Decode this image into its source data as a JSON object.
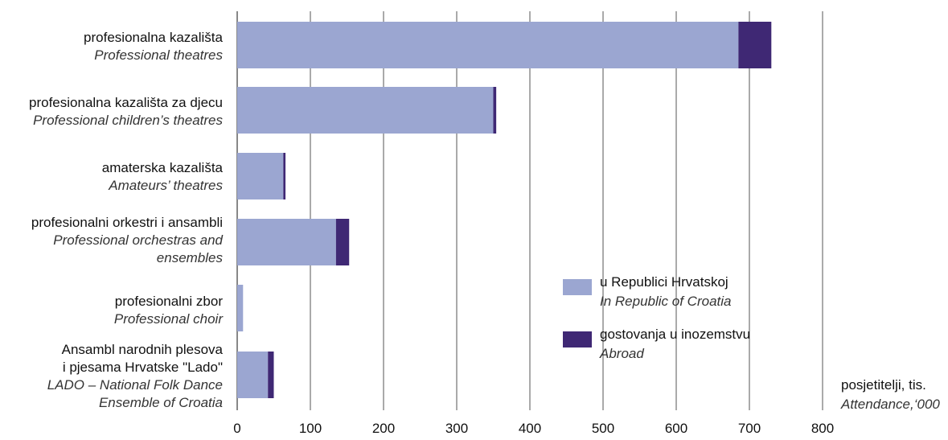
{
  "colors": {
    "domestic": "#9ba6d1",
    "abroad": "#3f2874",
    "grid": "#555555"
  },
  "chart_data": {
    "type": "bar",
    "orientation": "horizontal",
    "stacked": true,
    "categories": [
      {
        "hr": "profesionalna kazališta",
        "en": "Professional theatres"
      },
      {
        "hr": "profesionalna kazališta za djecu",
        "en": "Professional children’s theatres"
      },
      {
        "hr": "amaterska kazališta",
        "en": "Amateurs’ theatres"
      },
      {
        "hr": "profesionalni orkestri i ansambli",
        "en": "Professional orchestras and\nensembles"
      },
      {
        "hr": "profesionalni zbor",
        "en": "Professional choir"
      },
      {
        "hr": "Ansambl narodnih plesova\ni pjesama Hrvatske \"Lado\"",
        "en": "LADO – National Folk Dance\nEnsemble of Croatia"
      }
    ],
    "series": [
      {
        "name_hr": "u Republici Hrvatskoj",
        "name_en": "In Republic of Croatia",
        "color": "#9ba6d1",
        "values": [
          685,
          350,
          63,
          135,
          8,
          42
        ]
      },
      {
        "name_hr": "gostovanja u inozemstvu",
        "name_en": "Abroad",
        "color": "#3f2874",
        "values": [
          45,
          4,
          3,
          18,
          0,
          8
        ]
      }
    ],
    "xlim": [
      0,
      800
    ],
    "xticks": [
      0,
      100,
      200,
      300,
      400,
      500,
      600,
      700,
      800
    ],
    "xlabel_hr": "posjetitelji, tis.",
    "xlabel_en": "Attendance,‘000",
    "grid": "vertical",
    "legend_position": "right"
  }
}
